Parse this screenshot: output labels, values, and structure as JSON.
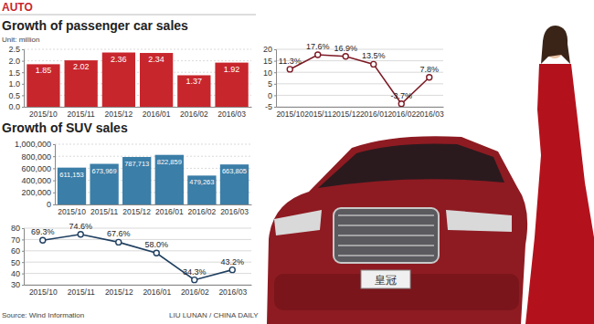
{
  "header": "AUTO",
  "source": "Source: Wind Information",
  "credit": "LIU LUNAN / CHINA DAILY",
  "photo": {
    "plate": "皇冠"
  },
  "chart_data": [
    {
      "type": "bar",
      "title": "Growth of passenger car sales",
      "subtitle": "Unit: million",
      "categories": [
        "2015/10",
        "2015/11",
        "2015/12",
        "2016/01",
        "2016/02",
        "2016/03"
      ],
      "values": [
        1.85,
        2.02,
        2.36,
        2.34,
        1.37,
        1.92
      ],
      "color": "#c8262d",
      "ylim": [
        0,
        2.5
      ],
      "yticks": [
        {
          "value": 0,
          "label": "0.0"
        },
        0.5,
        {
          "value": 1,
          "label": "1.0"
        },
        1.5,
        {
          "value": 2,
          "label": "2.0"
        },
        2.5
      ],
      "grid": true,
      "data_labels": true
    },
    {
      "type": "line",
      "categories": [
        "2015/10",
        "2015/11",
        "2015/12",
        "2016/01",
        "2016/02",
        "2016/03"
      ],
      "values": [
        11.3,
        17.6,
        16.9,
        13.5,
        -3.7,
        7.8
      ],
      "value_labels": [
        "11.3%",
        "17.6%",
        "16.9%",
        "13.5%",
        "-3.7%",
        "7.8%"
      ],
      "color": "#7d1a26",
      "ylim": [
        -5,
        20
      ],
      "yticks": [
        -5,
        0,
        5,
        10,
        15,
        20
      ],
      "grid": true,
      "data_labels": true,
      "marker": "circle"
    },
    {
      "type": "bar",
      "title": "Growth of SUV sales",
      "categories": [
        "2015/10",
        "2015/11",
        "2015/12",
        "2016/01",
        "2016/02",
        "2016/03"
      ],
      "values": [
        611153,
        673969,
        787713,
        822859,
        479263,
        663805
      ],
      "value_labels": [
        "611,153",
        "673,969",
        "787,713",
        "822,859",
        "479,263",
        "663,805"
      ],
      "color": "#3b7ea8",
      "ylim": [
        0,
        1000000
      ],
      "yticks": [
        0,
        {
          "value": 200000,
          "label": "200,000"
        },
        {
          "value": 400000,
          "label": "400,000"
        },
        {
          "value": 600000,
          "label": "600,000"
        },
        {
          "value": 800000,
          "label": "800,000"
        },
        {
          "value": 1000000,
          "label": "1,000,000"
        }
      ],
      "grid": true,
      "data_labels": true
    },
    {
      "type": "line",
      "categories": [
        "2015/10",
        "2015/11",
        "2015/12",
        "2016/01",
        "2016/02",
        "2016/03"
      ],
      "values": [
        69.3,
        74.6,
        67.6,
        58.0,
        34.3,
        43.2
      ],
      "value_labels": [
        "69.3%",
        "74.6%",
        "67.6%",
        "58.0%",
        "34.3%",
        "43.2%"
      ],
      "color": "#1f3f60",
      "ylim": [
        30,
        80
      ],
      "yticks": [
        30,
        40,
        50,
        60,
        70,
        80
      ],
      "grid": true,
      "data_labels": true,
      "marker": "circle"
    }
  ]
}
